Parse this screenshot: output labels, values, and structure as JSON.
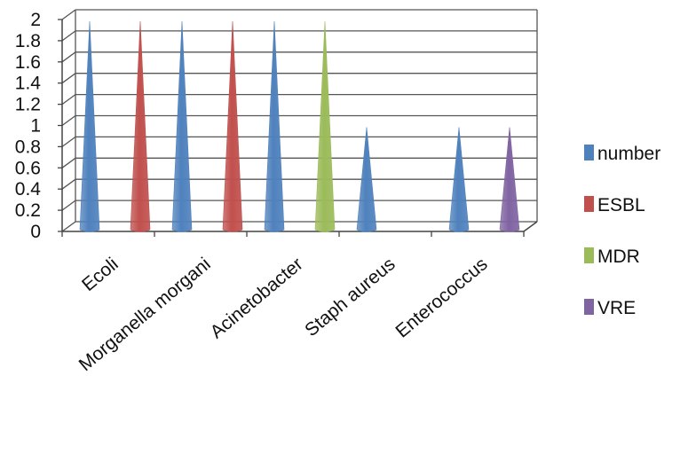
{
  "chart_data": {
    "type": "bar",
    "bar_shape": "cone",
    "categories": [
      "Ecoli",
      "Morganella morgani",
      "Acinetobacter",
      "Staph aureus",
      "Enterococcus"
    ],
    "series": [
      {
        "name": "number",
        "color": "#4f81bd",
        "values": [
          2,
          2,
          2,
          1,
          1
        ]
      },
      {
        "name": "ESBL",
        "color": "#c0504d",
        "values": [
          2,
          2,
          null,
          null,
          null
        ]
      },
      {
        "name": "MDR",
        "color": "#9bbb59",
        "values": [
          null,
          null,
          2,
          null,
          null
        ]
      },
      {
        "name": "VRE",
        "color": "#8064a2",
        "values": [
          null,
          null,
          null,
          null,
          1
        ]
      }
    ],
    "ylim": [
      0,
      2
    ],
    "yticks": [
      "0",
      "0.2",
      "0.4",
      "0.6",
      "0.8",
      "1",
      "1.2",
      "1.4",
      "1.6",
      "1.8",
      "2"
    ],
    "title": "",
    "xlabel": "",
    "ylabel": "",
    "grid": true,
    "legend_position": "right"
  }
}
